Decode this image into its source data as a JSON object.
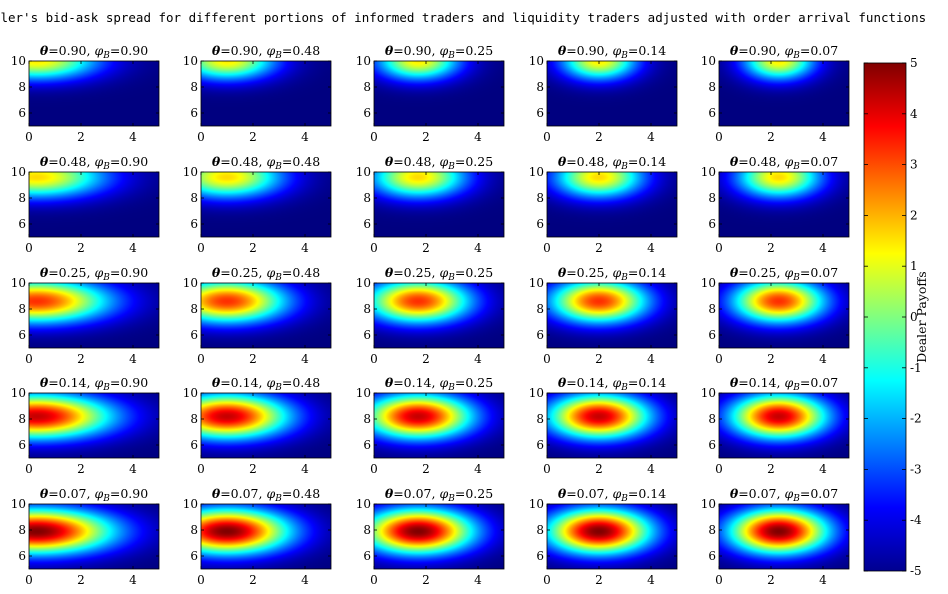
{
  "title": "Dealer's bid-ask spread for different portions of informed traders and liquidity traders adjusted with order arrival functions",
  "colorbar": {
    "label": "Dealer Payoffs",
    "ticks": [
      "5",
      "4",
      "3",
      "2",
      "1",
      "0",
      "-1",
      "-2",
      "-3",
      "-4",
      "-5"
    ],
    "colors": [
      "#00008f",
      "#0000ff",
      "#0080ff",
      "#00ffff",
      "#80ff80",
      "#ffff00",
      "#ff8000",
      "#ff0000",
      "#800000"
    ]
  },
  "chart_data": {
    "type": "heatmap",
    "rows": 5,
    "cols": 5,
    "theta_values": [
      "0.90",
      "0.48",
      "0.25",
      "0.14",
      "0.07"
    ],
    "phi_values": [
      "0.90",
      "0.48",
      "0.25",
      "0.14",
      "0.07"
    ],
    "theta_symbol": "θ",
    "phi_symbol": "φ",
    "phi_subscript": "B",
    "xlim": [
      0,
      5
    ],
    "ylim": [
      5,
      10
    ],
    "x_ticks": [
      "0",
      "2",
      "4"
    ],
    "y_ticks": [
      "10",
      "8",
      "6"
    ],
    "clim": [
      -5,
      5
    ],
    "row_peak_values": [
      1.4,
      1.6,
      3.3,
      4.3,
      5.0
    ],
    "row_peak_y": [
      10.0,
      9.6,
      8.6,
      8.2,
      7.9
    ],
    "col_peak_x": [
      0.3,
      1.0,
      1.7,
      2.0,
      2.3
    ]
  }
}
